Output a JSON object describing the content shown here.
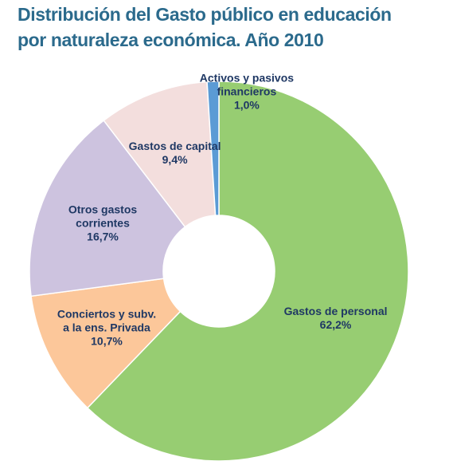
{
  "chart_data": {
    "type": "donut",
    "title": "Distribución del Gasto público en educación\npor naturaleza económica. Año 2010",
    "categories": [
      "Gastos de personal",
      "Conciertos y subv. a la ens. Privada",
      "Otros gastos corrientes",
      "Gastos de capital",
      "Activos y pasivos financieros"
    ],
    "values": [
      62.2,
      10.7,
      16.7,
      9.4,
      1.0
    ],
    "value_labels": [
      "62,2%",
      "10,7%",
      "16,7%",
      "9,4%",
      "1,0%"
    ],
    "colors": [
      "#97cd72",
      "#fcc79a",
      "#cdc3df",
      "#f3dedd",
      "#5b9bd5"
    ]
  }
}
